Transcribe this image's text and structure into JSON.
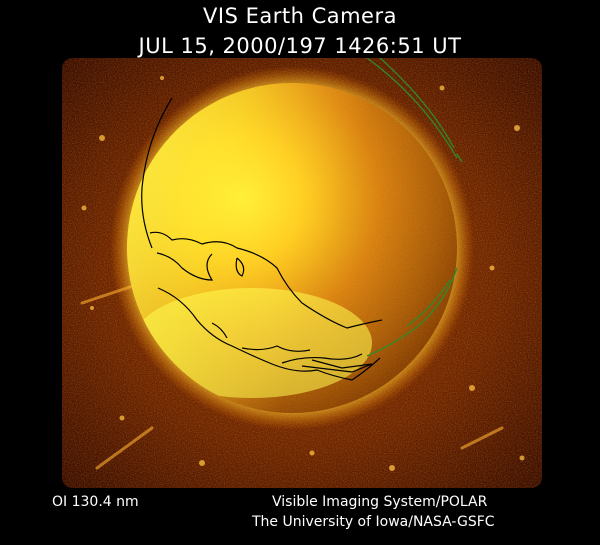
{
  "header": {
    "title": "VIS Earth Camera",
    "timestamp": "JUL 15, 2000/197 1426:51 UT"
  },
  "footer": {
    "band": "OI  130.4 nm",
    "instrument": "Visible Imaging System/POLAR",
    "credit": "The University of Iowa/NASA-GSFC"
  },
  "image": {
    "subject": "earth-disk-far-ultraviolet",
    "palette": {
      "background": "#000000",
      "dark_glow": "#4a1400",
      "mid_glow": "#b24a00",
      "bright_glow": "#ff9a10",
      "disk_peak": "#ffff30",
      "coastline": "#000000",
      "grid_overlay": "#2f8a2a"
    }
  }
}
